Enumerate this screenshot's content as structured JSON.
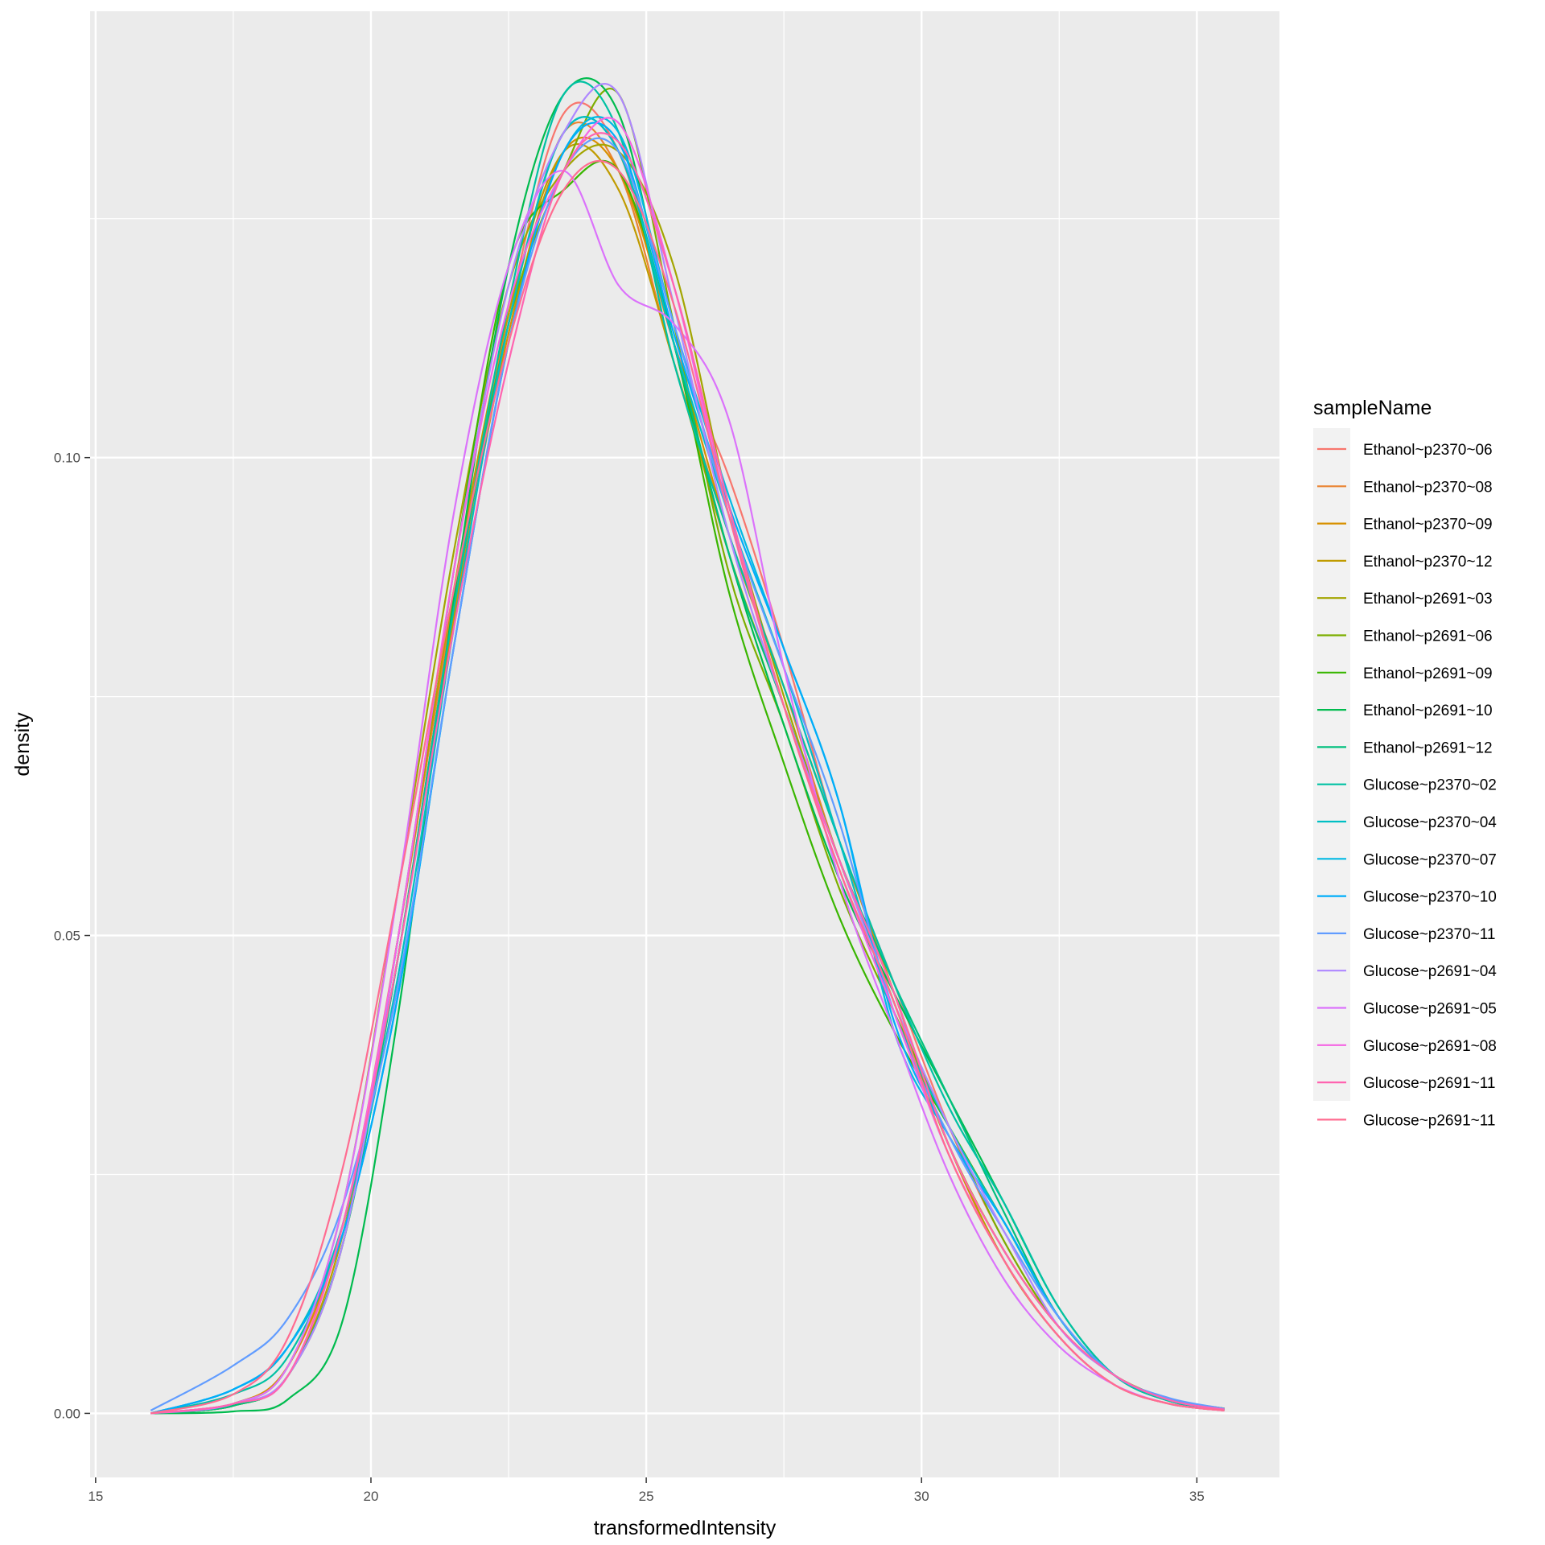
{
  "chart_data": {
    "type": "line",
    "xlabel": "transformedIntensity",
    "ylabel": "density",
    "xlim": [
      14.9,
      36.5
    ],
    "ylim": [
      -0.0067,
      0.1467
    ],
    "xticks": [
      15,
      20,
      25,
      30,
      35
    ],
    "xtick_labels": [
      "15",
      "20",
      "25",
      "30",
      "35"
    ],
    "yticks": [
      0.0,
      0.05,
      0.1
    ],
    "ytick_labels": [
      "0.00",
      "0.05",
      "0.10"
    ],
    "grid": true,
    "legend": {
      "title": "sampleName",
      "position": "right"
    },
    "series": [
      {
        "name": "Ethanol~p2370~06",
        "color": "#F8766D",
        "x": [
          16,
          17.5,
          18.5,
          19.5,
          20.5,
          21.5,
          22.5,
          23.5,
          24.5,
          25.5,
          26.5,
          27.5,
          28.5,
          29.5,
          30.5,
          31.5,
          32.5,
          33.5,
          34.5,
          35.5
        ],
        "y": [
          0,
          0.001,
          0.005,
          0.02,
          0.05,
          0.085,
          0.115,
          0.136,
          0.132,
          0.112,
          0.098,
          0.08,
          0.06,
          0.045,
          0.03,
          0.018,
          0.009,
          0.004,
          0.0015,
          0.0005
        ]
      },
      {
        "name": "Ethanol~p2370~08",
        "color": "#EA8331",
        "x": [
          16,
          17.5,
          18.5,
          19.5,
          20.5,
          21.5,
          22.5,
          23.5,
          24.5,
          25.5,
          26.5,
          27.5,
          28.5,
          29.5,
          30.5,
          31.5,
          32.5,
          33.5,
          34.5,
          35.5
        ],
        "y": [
          0,
          0.0008,
          0.004,
          0.018,
          0.05,
          0.085,
          0.114,
          0.134,
          0.13,
          0.11,
          0.092,
          0.076,
          0.058,
          0.044,
          0.028,
          0.016,
          0.008,
          0.003,
          0.001,
          0.0003
        ]
      },
      {
        "name": "Ethanol~p2370~09",
        "color": "#D89000",
        "x": [
          16,
          17.5,
          18.5,
          19.5,
          20.5,
          21.5,
          22.5,
          23.5,
          24.5,
          25.5,
          26.5,
          27.5,
          28.5,
          29.5,
          30.5,
          31.5,
          32.5,
          33.5,
          34.5,
          35.5
        ],
        "y": [
          0,
          0.001,
          0.005,
          0.02,
          0.048,
          0.083,
          0.113,
          0.132,
          0.13,
          0.112,
          0.092,
          0.076,
          0.06,
          0.044,
          0.028,
          0.017,
          0.009,
          0.004,
          0.0015,
          0.0005
        ]
      },
      {
        "name": "Ethanol~p2370~12",
        "color": "#C09B00",
        "x": [
          16,
          17.5,
          18.5,
          19.5,
          20.5,
          21.5,
          22.5,
          23.5,
          24.5,
          25.5,
          26.5,
          27.5,
          28.5,
          29.5,
          30.5,
          31.5,
          32.5,
          33.5,
          34.5,
          35.5
        ],
        "y": [
          0,
          0.001,
          0.004,
          0.019,
          0.05,
          0.086,
          0.115,
          0.132,
          0.128,
          0.11,
          0.09,
          0.074,
          0.058,
          0.043,
          0.028,
          0.016,
          0.008,
          0.003,
          0.001,
          0.0003
        ]
      },
      {
        "name": "Ethanol~p2691~03",
        "color": "#A3A500",
        "x": [
          16,
          17.5,
          18.5,
          19.5,
          20.5,
          21.5,
          22.5,
          23.5,
          24.5,
          25.5,
          26.5,
          27.5,
          28.5,
          29.5,
          30.5,
          31.5,
          32.5,
          33.5,
          34.5,
          35.5
        ],
        "y": [
          0,
          0.001,
          0.005,
          0.022,
          0.055,
          0.09,
          0.118,
          0.13,
          0.132,
          0.12,
          0.095,
          0.075,
          0.058,
          0.043,
          0.028,
          0.017,
          0.009,
          0.004,
          0.0015,
          0.0005
        ]
      },
      {
        "name": "Ethanol~p2691~06",
        "color": "#7CAE00",
        "x": [
          16,
          17.5,
          18.5,
          19.5,
          20.5,
          21.5,
          22.5,
          23.5,
          24.5,
          25.5,
          26.5,
          27.5,
          28.5,
          29.5,
          30.5,
          31.5,
          32.5,
          33.5,
          34.5,
          35.5
        ],
        "y": [
          0,
          0.0008,
          0.004,
          0.018,
          0.048,
          0.084,
          0.114,
          0.13,
          0.138,
          0.114,
          0.088,
          0.072,
          0.055,
          0.042,
          0.03,
          0.018,
          0.009,
          0.004,
          0.0015,
          0.0004
        ]
      },
      {
        "name": "Ethanol~p2691~09",
        "color": "#39B600",
        "x": [
          16,
          17.5,
          18.5,
          19.5,
          20.5,
          21.5,
          22.5,
          23.5,
          24.5,
          25.5,
          26.5,
          27.5,
          28.5,
          29.5,
          30.5,
          31.5,
          32.5,
          33.5,
          34.5,
          35.5
        ],
        "y": [
          0,
          0.0008,
          0.004,
          0.018,
          0.05,
          0.088,
          0.12,
          0.128,
          0.13,
          0.112,
          0.086,
          0.068,
          0.052,
          0.04,
          0.03,
          0.02,
          0.01,
          0.004,
          0.0015,
          0.0004
        ]
      },
      {
        "name": "Ethanol~p2691~10",
        "color": "#00BB4E",
        "x": [
          16,
          17.5,
          18.5,
          19.5,
          20.5,
          21.5,
          22.5,
          23.5,
          24.5,
          25.5,
          26.5,
          27.5,
          28.5,
          29.5,
          30.5,
          31.5,
          32.5,
          33.5,
          34.5,
          35.5
        ],
        "y": [
          0,
          0.0002,
          0.0015,
          0.01,
          0.042,
          0.085,
          0.12,
          0.138,
          0.136,
          0.112,
          0.09,
          0.072,
          0.056,
          0.044,
          0.033,
          0.022,
          0.011,
          0.004,
          0.0013,
          0.0003
        ]
      },
      {
        "name": "Ethanol~p2691~12",
        "color": "#00BF7D",
        "x": [
          16,
          17.5,
          18.5,
          19.5,
          20.5,
          21.5,
          22.5,
          23.5,
          24.5,
          25.5,
          26.5,
          27.5,
          28.5,
          29.5,
          30.5,
          31.5,
          32.5,
          33.5,
          34.5,
          35.5
        ],
        "y": [
          0,
          0.0008,
          0.004,
          0.018,
          0.048,
          0.084,
          0.114,
          0.134,
          0.132,
          0.112,
          0.09,
          0.074,
          0.058,
          0.045,
          0.033,
          0.021,
          0.01,
          0.004,
          0.0013,
          0.0003
        ]
      },
      {
        "name": "Glucose~p2370~02",
        "color": "#00C1A3",
        "x": [
          16,
          17.5,
          18.5,
          19.5,
          20.5,
          21.5,
          22.5,
          23.5,
          24.5,
          25.5,
          26.5,
          27.5,
          28.5,
          29.5,
          30.5,
          31.5,
          32.5,
          33.5,
          34.5,
          35.5
        ],
        "y": [
          0,
          0.002,
          0.006,
          0.02,
          0.048,
          0.084,
          0.116,
          0.138,
          0.134,
          0.11,
          0.092,
          0.076,
          0.06,
          0.045,
          0.032,
          0.022,
          0.011,
          0.004,
          0.0013,
          0.0004
        ]
      },
      {
        "name": "Glucose~p2370~04",
        "color": "#00BFC4",
        "x": [
          16,
          17.5,
          18.5,
          19.5,
          20.5,
          21.5,
          22.5,
          23.5,
          24.5,
          25.5,
          26.5,
          27.5,
          28.5,
          29.5,
          30.5,
          31.5,
          32.5,
          33.5,
          34.5,
          35.5
        ],
        "y": [
          0,
          0.0025,
          0.007,
          0.02,
          0.046,
          0.082,
          0.114,
          0.134,
          0.132,
          0.112,
          0.094,
          0.078,
          0.06,
          0.042,
          0.03,
          0.02,
          0.01,
          0.004,
          0.0015,
          0.0004
        ]
      },
      {
        "name": "Glucose~p2370~07",
        "color": "#00B9E3",
        "x": [
          16,
          17.5,
          18.5,
          19.5,
          20.5,
          21.5,
          22.5,
          23.5,
          24.5,
          25.5,
          26.5,
          27.5,
          28.5,
          29.5,
          30.5,
          31.5,
          32.5,
          33.5,
          34.5,
          35.5
        ],
        "y": [
          0,
          0.0025,
          0.007,
          0.019,
          0.044,
          0.08,
          0.112,
          0.132,
          0.134,
          0.114,
          0.096,
          0.08,
          0.064,
          0.04,
          0.029,
          0.02,
          0.01,
          0.004,
          0.0015,
          0.0004
        ]
      },
      {
        "name": "Glucose~p2370~10",
        "color": "#00ADFA",
        "x": [
          16,
          17.5,
          18.5,
          19.5,
          20.5,
          21.5,
          22.5,
          23.5,
          24.5,
          25.5,
          26.5,
          27.5,
          28.5,
          29.5,
          30.5,
          31.5,
          32.5,
          33.5,
          34.5,
          35.5
        ],
        "y": [
          0,
          0.0025,
          0.007,
          0.019,
          0.044,
          0.08,
          0.112,
          0.132,
          0.133,
          0.113,
          0.095,
          0.08,
          0.064,
          0.041,
          0.029,
          0.02,
          0.01,
          0.004,
          0.0015,
          0.0004
        ]
      },
      {
        "name": "Glucose~p2370~11",
        "color": "#619CFF",
        "x": [
          16,
          17.5,
          18.5,
          19.5,
          20.5,
          21.5,
          22.5,
          23.5,
          24.5,
          25.5,
          26.5,
          27.5,
          28.5,
          29.5,
          30.5,
          31.5,
          32.5,
          33.5,
          34.5,
          35.5
        ],
        "y": [
          0.0003,
          0.005,
          0.01,
          0.022,
          0.045,
          0.08,
          0.112,
          0.13,
          0.132,
          0.114,
          0.094,
          0.078,
          0.062,
          0.042,
          0.029,
          0.019,
          0.01,
          0.004,
          0.0016,
          0.0005
        ]
      },
      {
        "name": "Glucose~p2691~04",
        "color": "#AE87FF",
        "x": [
          16,
          17.5,
          18.5,
          19.5,
          20.5,
          21.5,
          22.5,
          23.5,
          24.5,
          25.5,
          26.5,
          27.5,
          28.5,
          29.5,
          30.5,
          31.5,
          32.5,
          33.5,
          34.5,
          35.5
        ],
        "y": [
          0,
          0.001,
          0.004,
          0.018,
          0.05,
          0.088,
          0.118,
          0.134,
          0.138,
          0.116,
          0.092,
          0.074,
          0.058,
          0.043,
          0.03,
          0.019,
          0.009,
          0.004,
          0.0014,
          0.0004
        ]
      },
      {
        "name": "Glucose~p2691~05",
        "color": "#DB72FB",
        "x": [
          16,
          17.5,
          18.5,
          19.5,
          20.5,
          21.5,
          22.5,
          23.5,
          24.5,
          25.5,
          26.5,
          27.5,
          28.5,
          29.5,
          30.5,
          31.5,
          32.5,
          33.5,
          34.5,
          35.5
        ],
        "y": [
          0,
          0.001,
          0.005,
          0.022,
          0.055,
          0.094,
          0.12,
          0.13,
          0.118,
          0.114,
          0.104,
          0.078,
          0.056,
          0.04,
          0.025,
          0.014,
          0.007,
          0.003,
          0.001,
          0.0003
        ]
      },
      {
        "name": "Glucose~p2691~08",
        "color": "#F564E3",
        "x": [
          16,
          17.5,
          18.5,
          19.5,
          20.5,
          21.5,
          22.5,
          23.5,
          24.5,
          25.5,
          26.5,
          27.5,
          28.5,
          29.5,
          30.5,
          31.5,
          32.5,
          33.5,
          34.5,
          35.5
        ],
        "y": [
          0,
          0.001,
          0.004,
          0.02,
          0.05,
          0.088,
          0.116,
          0.13,
          0.135,
          0.118,
          0.094,
          0.074,
          0.057,
          0.042,
          0.027,
          0.016,
          0.008,
          0.003,
          0.001,
          0.0003
        ]
      },
      {
        "name": "Glucose~p2691~11",
        "color": "#FF64B0",
        "x": [
          16,
          17.5,
          18.5,
          19.5,
          20.5,
          21.5,
          22.5,
          23.5,
          24.5,
          25.5,
          26.5,
          27.5,
          28.5,
          29.5,
          30.5,
          31.5,
          32.5,
          33.5,
          34.5,
          35.5
        ],
        "y": [
          0,
          0.001,
          0.004,
          0.02,
          0.048,
          0.082,
          0.11,
          0.13,
          0.133,
          0.118,
          0.095,
          0.074,
          0.058,
          0.044,
          0.028,
          0.017,
          0.009,
          0.004,
          0.0014,
          0.0004
        ]
      },
      {
        "name": "Glucose~p2691~11",
        "color": "#FF6C91",
        "x": [
          16,
          17.5,
          18.5,
          19.5,
          20.5,
          21.5,
          22.5,
          23.5,
          24.5,
          25.5,
          26.5,
          27.5,
          28.5,
          29.5,
          30.5,
          31.5,
          32.5,
          33.5,
          34.5,
          35.5
        ],
        "y": [
          0,
          0.002,
          0.008,
          0.026,
          0.055,
          0.086,
          0.112,
          0.128,
          0.13,
          0.116,
          0.094,
          0.074,
          0.057,
          0.043,
          0.027,
          0.016,
          0.008,
          0.003,
          0.001,
          0.0003
        ]
      }
    ]
  }
}
